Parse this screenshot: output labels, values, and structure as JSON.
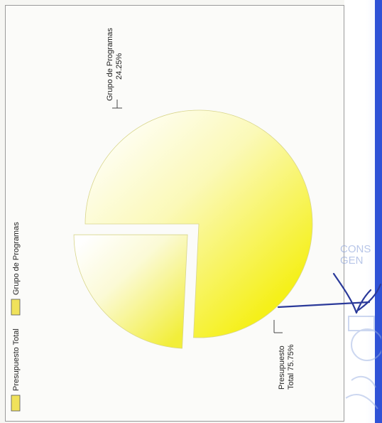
{
  "chart_data": {
    "type": "pie",
    "title": "",
    "categories": [
      "Presupuesto Total",
      "Grupo de Programas"
    ],
    "values": [
      75.75,
      24.25
    ],
    "unit": "%",
    "data_labels": [
      "Presupuesto\nTotal 75.75%",
      "Grupo de Programas\n24.25%"
    ],
    "exploded": [
      "Grupo de Programas"
    ],
    "legend": {
      "placement": "left",
      "entries": [
        "Presupuesto Total",
        "Grupo de Programas"
      ]
    },
    "colors": {
      "slice_dark": "#f5f01a",
      "slice_light": "#ffffff",
      "swatch": "#f0e25a"
    },
    "orientation": "rotated 90° clockwise"
  },
  "annotations": {
    "stamp_text_lines": [
      "CONS",
      "GEN"
    ],
    "signature_color": "#2b3a9a",
    "stamp_color": "#8aa3d8"
  }
}
